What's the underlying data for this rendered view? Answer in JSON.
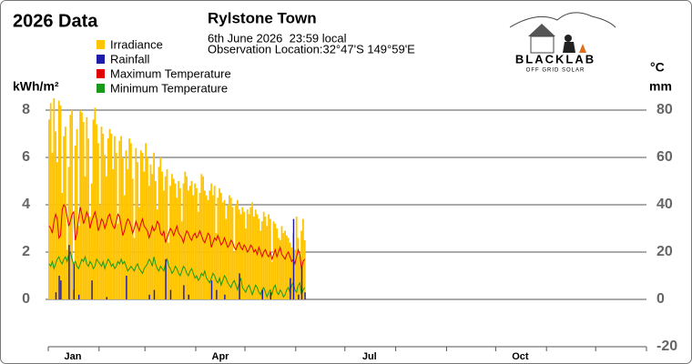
{
  "chart_data": {
    "type": "combo",
    "title": "Rylstone Town",
    "corner_title": "2026 Data",
    "subtitle_lines": [
      "6th June 2026  23:59 local",
      "Observation Location:32°47'S 149°59'E"
    ],
    "ylabel": "kWh/m²",
    "y2labels": [
      "°C",
      "mm"
    ],
    "brand": {
      "name": "BLACKLAB",
      "tagline": "OFF GRID SOLAR"
    },
    "xlim": [
      0,
      365
    ],
    "month_ticks": [
      0,
      31,
      59,
      90,
      120,
      151,
      181,
      212,
      243,
      273,
      304,
      334,
      365
    ],
    "xticks": [
      {
        "value": 15,
        "label": "Jan"
      },
      {
        "value": 105,
        "label": "Apr"
      },
      {
        "value": 196,
        "label": "Jul"
      },
      {
        "value": 288,
        "label": "Oct"
      }
    ],
    "ylim": [
      -2,
      8
    ],
    "yticks": [
      0,
      2,
      4,
      6,
      8
    ],
    "y2lim": [
      -20,
      80
    ],
    "y2ticks": [
      -20,
      0,
      20,
      40,
      60,
      80
    ],
    "grid": true,
    "x": [
      1,
      2,
      3,
      4,
      5,
      6,
      7,
      8,
      9,
      10,
      11,
      12,
      13,
      14,
      15,
      16,
      17,
      18,
      19,
      20,
      21,
      22,
      23,
      24,
      25,
      26,
      27,
      28,
      29,
      30,
      31,
      32,
      33,
      34,
      35,
      36,
      37,
      38,
      39,
      40,
      41,
      42,
      43,
      44,
      45,
      46,
      47,
      48,
      49,
      50,
      51,
      52,
      53,
      54,
      55,
      56,
      57,
      58,
      59,
      60,
      61,
      62,
      63,
      64,
      65,
      66,
      67,
      68,
      69,
      70,
      71,
      72,
      73,
      74,
      75,
      76,
      77,
      78,
      79,
      80,
      81,
      82,
      83,
      84,
      85,
      86,
      87,
      88,
      89,
      90,
      91,
      92,
      93,
      94,
      95,
      96,
      97,
      98,
      99,
      100,
      101,
      102,
      103,
      104,
      105,
      106,
      107,
      108,
      109,
      110,
      111,
      112,
      113,
      114,
      115,
      116,
      117,
      118,
      119,
      120,
      121,
      122,
      123,
      124,
      125,
      126,
      127,
      128,
      129,
      130,
      131,
      132,
      133,
      134,
      135,
      136,
      137,
      138,
      139,
      140,
      141,
      142,
      143,
      144,
      145,
      146,
      147,
      148,
      149,
      150,
      151,
      152,
      153,
      154,
      155,
      156,
      157
    ],
    "series": [
      {
        "name": "Irradiance",
        "type": "bar",
        "axis": "y",
        "color": "#ffc400",
        "values": [
          7.6,
          8.3,
          6.2,
          8.5,
          7.1,
          5.8,
          8.4,
          8.2,
          4.5,
          6.9,
          7.3,
          2.1,
          5.6,
          7.8,
          8.0,
          0.4,
          6.5,
          7.2,
          3.1,
          8.0,
          7.9,
          7.5,
          5.2,
          7.7,
          6.8,
          3.5,
          4.9,
          7.6,
          8.1,
          7.4,
          6.6,
          4.0,
          7.3,
          7.0,
          6.1,
          5.2,
          6.8,
          7.2,
          7.0,
          5.5,
          6.9,
          6.2,
          3.2,
          6.7,
          6.9,
          6.0,
          4.4,
          6.3,
          5.5,
          6.8,
          6.6,
          5.1,
          2.6,
          6.4,
          5.8,
          3.9,
          6.3,
          6.2,
          5.4,
          6.6,
          6.0,
          4.8,
          5.7,
          5.3,
          6.2,
          5.0,
          3.8,
          5.6,
          6.0,
          5.4,
          4.6,
          5.2,
          5.5,
          2.4,
          4.8,
          5.3,
          5.1,
          4.9,
          4.3,
          5.0,
          4.7,
          3.3,
          4.9,
          5.4,
          5.2,
          4.6,
          4.8,
          5.0,
          4.4,
          4.9,
          4.7,
          3.7,
          4.5,
          5.3,
          5.2,
          4.6,
          4.4,
          4.2,
          4.6,
          4.9,
          4.4,
          4.8,
          2.8,
          4.3,
          4.7,
          4.5,
          4.1,
          4.2,
          3.4,
          4.0,
          4.4,
          4.3,
          3.9,
          2.0,
          4.0,
          4.2,
          3.8,
          3.6,
          3.9,
          3.7,
          3.0,
          3.8,
          3.6,
          3.9,
          4.1,
          3.5,
          3.8,
          3.6,
          3.4,
          2.9,
          3.3,
          3.7,
          3.5,
          3.1,
          3.6,
          3.4,
          1.6,
          3.3,
          3.2,
          3.0,
          2.6,
          2.5,
          3.1,
          2.8,
          2.9,
          2.7,
          2.6,
          2.4,
          2.2,
          2.8,
          2.1,
          3.5,
          2.6,
          1.8,
          2.9,
          3.4,
          2.5
        ]
      },
      {
        "name": "Rainfall",
        "type": "bar",
        "axis": "y2",
        "color": "#1c1ca8",
        "values": [
          0,
          0,
          0,
          0,
          3,
          0,
          10,
          8,
          0,
          0,
          0,
          0,
          23,
          0,
          0,
          15,
          0,
          0,
          2,
          0,
          0,
          0,
          0,
          0,
          0,
          0,
          8,
          0,
          0,
          0,
          0,
          0,
          0,
          0,
          0,
          1,
          0,
          0,
          0,
          0,
          0,
          0,
          0,
          0,
          0,
          0,
          0,
          10,
          0,
          0,
          0,
          0,
          0,
          0,
          0,
          0,
          0,
          0,
          0,
          0,
          0,
          2,
          0,
          0,
          4,
          0,
          0,
          0,
          0,
          0,
          0,
          17,
          0,
          0,
          4,
          0,
          0,
          0,
          0,
          0,
          0,
          0,
          6,
          0,
          0,
          2,
          0,
          0,
          0,
          0,
          0,
          0,
          0,
          0,
          0,
          0,
          0,
          0,
          0,
          8,
          0,
          0,
          4,
          0,
          0,
          0,
          0,
          2,
          0,
          0,
          0,
          0,
          0,
          0,
          0,
          0,
          11,
          0,
          0,
          0,
          0,
          0,
          0,
          0,
          0,
          0,
          0,
          0,
          0,
          0,
          4,
          0,
          0,
          0,
          0,
          3,
          0,
          0,
          0,
          0,
          0,
          0,
          0,
          0,
          0,
          0,
          0,
          9,
          0,
          34,
          0,
          0,
          2,
          0,
          14,
          0,
          3
        ]
      },
      {
        "name": "Maximum Temperature",
        "type": "line",
        "axis": "y2",
        "color": "#e00000",
        "values": [
          31,
          30,
          28,
          33,
          36,
          34,
          26,
          27,
          38,
          40,
          39,
          35,
          31,
          33,
          36,
          37,
          25,
          28,
          34,
          39,
          36,
          32,
          34,
          37,
          35,
          30,
          33,
          35,
          37,
          34,
          29,
          31,
          34,
          33,
          30,
          32,
          35,
          36,
          33,
          31,
          30,
          33,
          36,
          35,
          31,
          27,
          29,
          32,
          34,
          33,
          31,
          28,
          30,
          33,
          31,
          29,
          32,
          34,
          31,
          30,
          29,
          26,
          28,
          31,
          29,
          30,
          33,
          32,
          28,
          27,
          29,
          24,
          26,
          28,
          30,
          29,
          27,
          29,
          31,
          28,
          27,
          26,
          24,
          27,
          29,
          28,
          26,
          25,
          27,
          28,
          26,
          27,
          29,
          27,
          25,
          24,
          26,
          28,
          27,
          22,
          24,
          26,
          25,
          27,
          25,
          23,
          24,
          26,
          24,
          22,
          23,
          25,
          24,
          22,
          21,
          23,
          24,
          22,
          21,
          23,
          22,
          20,
          21,
          23,
          22,
          20,
          21,
          19,
          22,
          20,
          18,
          20,
          21,
          19,
          18,
          20,
          17,
          19,
          21,
          18,
          20,
          22,
          19,
          18,
          17,
          19,
          20,
          18,
          16,
          17,
          15,
          18,
          21,
          19,
          13,
          16,
          17
        ]
      },
      {
        "name": "Minimum Temperature",
        "type": "line",
        "axis": "y2",
        "color": "#1a9a1a",
        "values": [
          15,
          14,
          16,
          13,
          15,
          17,
          18,
          16,
          15,
          17,
          18,
          16,
          19,
          20,
          17,
          15,
          16,
          14,
          13,
          15,
          17,
          16,
          18,
          15,
          14,
          16,
          15,
          13,
          14,
          17,
          16,
          15,
          14,
          16,
          13,
          15,
          17,
          16,
          14,
          15,
          13,
          14,
          16,
          15,
          17,
          15,
          16,
          14,
          12,
          13,
          14,
          13,
          12,
          14,
          15,
          13,
          12,
          11,
          13,
          14,
          15,
          17,
          16,
          14,
          18,
          15,
          13,
          12,
          14,
          13,
          12,
          15,
          17,
          14,
          13,
          11,
          12,
          14,
          13,
          11,
          10,
          12,
          14,
          13,
          11,
          10,
          12,
          13,
          11,
          9,
          10,
          8,
          9,
          11,
          10,
          12,
          9,
          8,
          7,
          9,
          11,
          10,
          8,
          7,
          9,
          6,
          8,
          10,
          9,
          7,
          6,
          5,
          7,
          8,
          6,
          4,
          7,
          9,
          5,
          4,
          3,
          5,
          6,
          4,
          2,
          4,
          6,
          5,
          3,
          2,
          4,
          5,
          3,
          1,
          3,
          4,
          2,
          5,
          6,
          3,
          2,
          4,
          3,
          1,
          2,
          4,
          5,
          3,
          6,
          7,
          4,
          3,
          6,
          7,
          2,
          4,
          5
        ]
      }
    ]
  }
}
